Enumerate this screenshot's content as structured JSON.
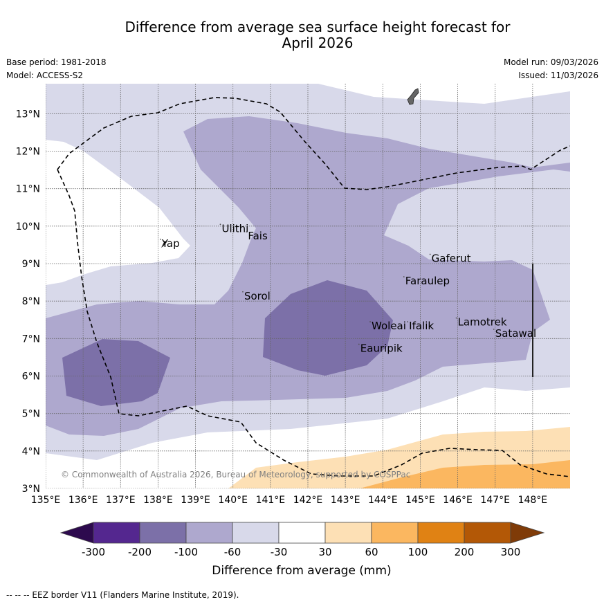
{
  "title": {
    "line1": "Difference from average sea surface height forecast for",
    "line2": "April 2026"
  },
  "meta_left": {
    "base_period": "Base period: 1981-2018",
    "model": "Model: ACCESS-S2"
  },
  "meta_right": {
    "model_run": "Model run: 09/03/2026",
    "issued": "Issued: 11/03/2026"
  },
  "map": {
    "lon_range": [
      135,
      149
    ],
    "lat_range": [
      3,
      13.8
    ],
    "lon_ticks": [
      "135°E",
      "136°E",
      "137°E",
      "138°E",
      "139°E",
      "140°E",
      "141°E",
      "142°E",
      "143°E",
      "144°E",
      "145°E",
      "146°E",
      "147°E",
      "148°E"
    ],
    "lat_ticks": [
      "3°N",
      "4°N",
      "5°N",
      "6°N",
      "7°N",
      "8°N",
      "9°N",
      "10°N",
      "11°N",
      "12°N",
      "13°N"
    ],
    "copyright": "© Commonwealth of Australia 2026, Bureau of Meteorology, supported by COSPPac",
    "places": [
      {
        "name": "Yap",
        "lon": 138.1,
        "lat": 9.5
      },
      {
        "name": "Ulithi",
        "lon": 139.7,
        "lat": 9.9
      },
      {
        "name": "Fais",
        "lon": 140.4,
        "lat": 9.7
      },
      {
        "name": "Gaferut",
        "lon": 145.3,
        "lat": 9.1
      },
      {
        "name": "Faraulep",
        "lon": 144.6,
        "lat": 8.5
      },
      {
        "name": "Sorol",
        "lon": 140.3,
        "lat": 8.1
      },
      {
        "name": "Woleai",
        "lon": 143.7,
        "lat": 7.3
      },
      {
        "name": "Ifalik",
        "lon": 144.7,
        "lat": 7.3
      },
      {
        "name": "Lamotrek",
        "lon": 146.0,
        "lat": 7.4
      },
      {
        "name": "Satawal",
        "lon": 147.0,
        "lat": 7.1
      },
      {
        "name": "Eauripik",
        "lon": 143.4,
        "lat": 6.7
      }
    ]
  },
  "colorbar": {
    "label": "Difference from average (mm)",
    "ticks": [
      "-300",
      "-200",
      "-100",
      "-60",
      "-30",
      "30",
      "60",
      "100",
      "200",
      "300"
    ],
    "colors": {
      "under": "#2d0a4e",
      "bins": [
        "#54278f",
        "#7c70a8",
        "#aea8ce",
        "#d8d9ea",
        "#ffffff",
        "#fde0b5",
        "#fbb760",
        "#e08214",
        "#b35806"
      ],
      "over": "#7f3b08"
    }
  },
  "footer": "--  --  -- EEZ border V11 (Flanders Marine Institute, 2019)."
}
